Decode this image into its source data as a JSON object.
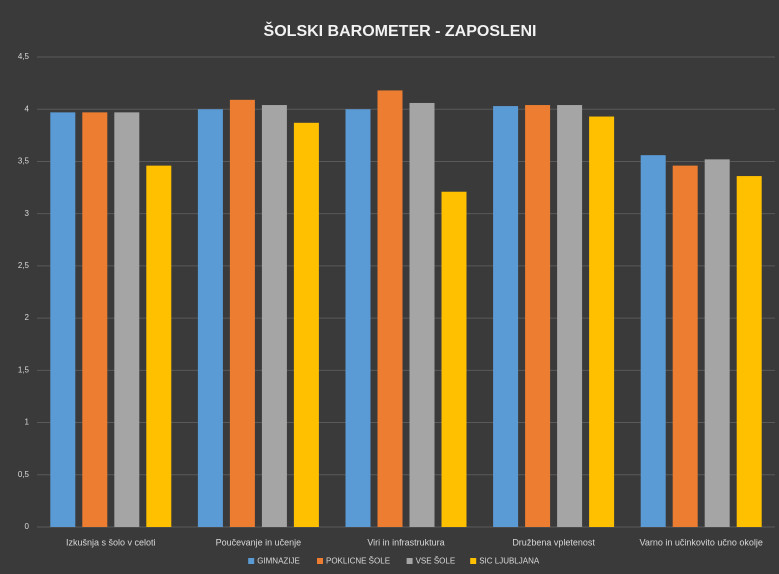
{
  "chart_data": {
    "type": "bar",
    "title": "ŠOLSKI BAROMETER - ZAPOSLENI",
    "categories": [
      "Izkušnja s šolo v celoti",
      "Poučevanje in učenje",
      "Viri in infrastruktura",
      "Družbena vpletenost",
      "Varno in učinkovito učno okolje"
    ],
    "series": [
      {
        "name": "GIMNAZIJE",
        "color": "#5b9bd5",
        "values": [
          3.97,
          4.0,
          4.0,
          4.03,
          3.56
        ]
      },
      {
        "name": "POKLICNE ŠOLE",
        "color": "#ed7d31",
        "values": [
          3.97,
          4.09,
          4.18,
          4.04,
          3.46
        ]
      },
      {
        "name": "VSE ŠOLE",
        "color": "#a5a5a5",
        "values": [
          3.97,
          4.04,
          4.06,
          4.04,
          3.52
        ]
      },
      {
        "name": "SIC LJUBLJANA",
        "color": "#ffc000",
        "values": [
          3.46,
          3.87,
          3.21,
          3.93,
          3.36
        ]
      }
    ],
    "ylim": [
      0,
      4.5
    ],
    "yticks": [
      0,
      {
        "value": 0.5,
        "label": "0,5"
      },
      1,
      {
        "value": 1.5,
        "label": "1,5"
      },
      2,
      {
        "value": 2.5,
        "label": "2,5"
      },
      3,
      {
        "value": 3.5,
        "label": "3,5"
      },
      4,
      {
        "value": 4.5,
        "label": "4,5"
      }
    ],
    "grid": true,
    "legend": "bottom"
  }
}
